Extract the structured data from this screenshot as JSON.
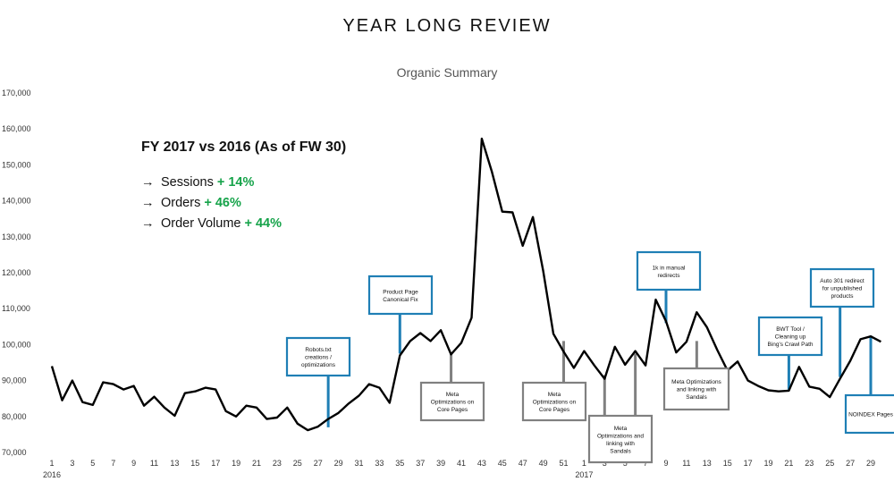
{
  "title": "YEAR LONG REVIEW",
  "summary": {
    "heading": "FY 2017 vs 2016 (As of FW 30)",
    "arrow": "→",
    "rows": [
      {
        "label": "Sessions",
        "value": "+ 14%"
      },
      {
        "label": "Orders",
        "value": "+ 46%"
      },
      {
        "label": "Order Volume",
        "value": "+ 44%"
      }
    ]
  },
  "colors": {
    "line": "#000000",
    "positive": "#16a34a",
    "blue_annotation": "#1f7fb5",
    "gray_annotation": "#808080"
  },
  "chart_data": {
    "type": "line",
    "title": "Organic Summary",
    "ylim": [
      70000,
      170000
    ],
    "yticks": [
      "70,000",
      "80,000",
      "90,000",
      "100,000",
      "110,000",
      "120,000",
      "130,000",
      "140,000",
      "150,000",
      "160,000",
      "170,000"
    ],
    "xtick_labels": [
      "1",
      "3",
      "5",
      "7",
      "9",
      "11",
      "13",
      "15",
      "17",
      "19",
      "21",
      "23",
      "25",
      "27",
      "29",
      "31",
      "33",
      "35",
      "37",
      "39",
      "41",
      "43",
      "45",
      "47",
      "49",
      "51",
      "1",
      "3",
      "5",
      "7",
      "9",
      "11",
      "13",
      "15",
      "17",
      "19",
      "21",
      "23",
      "25",
      "27",
      "29"
    ],
    "year_labels": [
      {
        "index": 0,
        "label": "2016"
      },
      {
        "index": 52,
        "label": "2017"
      }
    ],
    "grid": false,
    "legend": "none",
    "series": [
      {
        "values": [
          94000,
          84500,
          90000,
          84000,
          83200,
          89500,
          89000,
          87500,
          88500,
          83000,
          85500,
          82500,
          80200,
          86500,
          87000,
          88000,
          87500,
          81500,
          80000,
          83000,
          82500,
          79300,
          79700,
          82500,
          78000,
          76200,
          77200,
          79300,
          81000,
          83600,
          85800,
          89000,
          88000,
          83800,
          97000,
          101000,
          103200,
          101000,
          104000,
          97300,
          100500,
          107500,
          157300,
          148000,
          137000,
          136800,
          127500,
          135500,
          120500,
          103000,
          98000,
          93500,
          98200,
          94200,
          90500,
          99400,
          94400,
          98200,
          94200,
          112500,
          106500,
          97800,
          100800,
          109000,
          104800,
          98500,
          92800,
          95300,
          90000,
          88500,
          87300,
          87000,
          87200,
          93800,
          88300,
          87700,
          85400,
          90500,
          95500,
          101500,
          102300,
          100800
        ]
      }
    ],
    "annotations": [
      {
        "text": "Robots.txt creations / optimizations",
        "style": "blue",
        "index": 27,
        "value": 77000
      },
      {
        "text": "Product Page Canonical Fix",
        "style": "blue",
        "index": 34,
        "value": 97500
      },
      {
        "text": "Meta Optimizations on Core Pages",
        "style": "gray",
        "index": 39,
        "value": 97300
      },
      {
        "text": "Meta Optimizations on Core Pages",
        "style": "gray",
        "index": 50,
        "value": 101000
      },
      {
        "text": "Meta Optimizations and linking with Sandals",
        "style": "gray",
        "index": 54,
        "value": 91500
      },
      {
        "text": "Meta Optimizations and linking with Sandals",
        "style": "gray",
        "index": 57,
        "value": 97500
      },
      {
        "text": "1k in manual redirects",
        "style": "blue",
        "index": 60,
        "value": 106000
      },
      {
        "text": "Meta Optimizations and linking with Sandals",
        "style": "gray",
        "index": 63,
        "value": 101000
      },
      {
        "text": "BWT Tool / Cleaning up Bing's Crawl Path",
        "style": "blue",
        "index": 72,
        "value": 87500
      },
      {
        "text": "Auto 301 redirect for unpublished products",
        "style": "blue",
        "index": 77,
        "value": 91000
      },
      {
        "text": "NOINDEX Pages",
        "style": "blue",
        "index": 80,
        "value": 102500
      }
    ]
  }
}
